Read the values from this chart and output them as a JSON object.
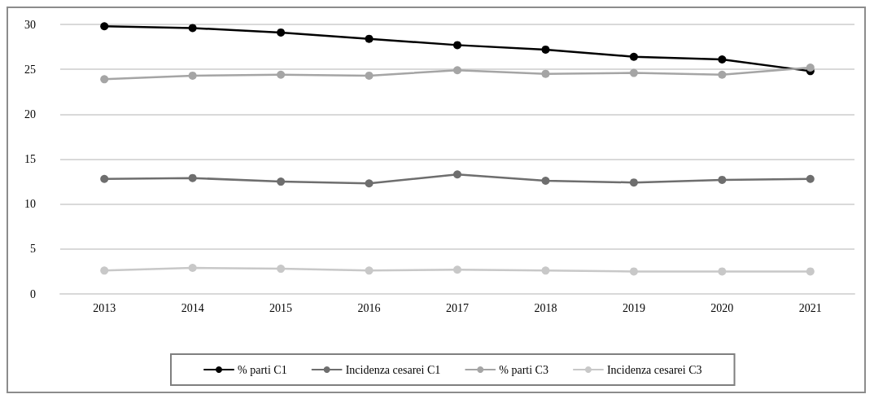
{
  "chart_data": {
    "type": "line",
    "categories": [
      "2013",
      "2014",
      "2015",
      "2016",
      "2017",
      "2018",
      "2019",
      "2020",
      "2021"
    ],
    "series": [
      {
        "name": "% parti C1",
        "color": "#000000",
        "values": [
          29.8,
          29.6,
          29.1,
          28.4,
          27.7,
          27.2,
          26.4,
          26.1,
          24.8
        ]
      },
      {
        "name": "Incidenza cesarei C1",
        "color": "#6e6e6e",
        "values": [
          12.8,
          12.9,
          12.5,
          12.3,
          13.3,
          12.6,
          12.4,
          12.7,
          12.8
        ]
      },
      {
        "name": "% parti C3",
        "color": "#a5a5a5",
        "values": [
          23.9,
          24.3,
          24.4,
          24.3,
          24.9,
          24.5,
          24.6,
          24.4,
          25.2
        ]
      },
      {
        "name": "Incidenza cesarei C3",
        "color": "#c8c8c8",
        "values": [
          2.6,
          2.9,
          2.8,
          2.6,
          2.7,
          2.6,
          2.5,
          2.5,
          2.5
        ]
      }
    ],
    "ylim": [
      0,
      30
    ],
    "yticks": [
      0,
      5,
      10,
      15,
      20,
      25,
      30
    ],
    "grid": "y",
    "legend": "bottom",
    "marker": "circle",
    "line_style": "solid"
  }
}
